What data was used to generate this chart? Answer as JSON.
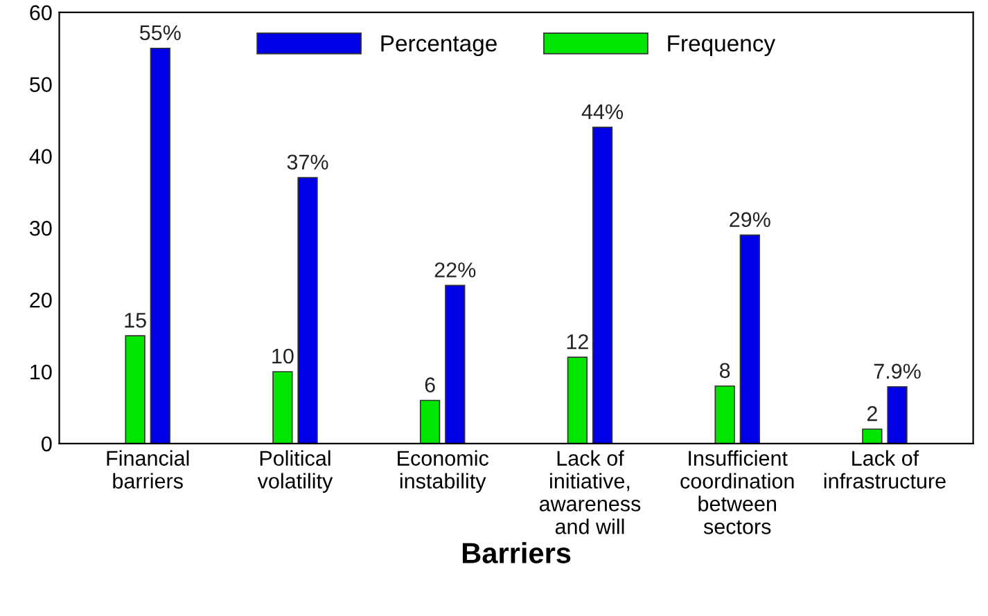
{
  "chart_data": {
    "type": "bar",
    "xlabel": "Barriers",
    "categories": [
      "Financial\nbarriers",
      "Political\nvolatility",
      "Economic\ninstability",
      "Lack of\ninitiative,\nawareness\nand will",
      "Insufficient\ncoordination\nbetween\nsectors",
      "Lack of\ninfrastructure"
    ],
    "series": [
      {
        "name": "Percentage",
        "color": "#0000e6",
        "values": [
          55,
          37,
          22,
          44,
          29,
          7.9
        ],
        "value_labels": [
          "55%",
          "37%",
          "22%",
          "44%",
          "29%",
          "7.9%"
        ]
      },
      {
        "name": "Frequency",
        "color": "#00e600",
        "values": [
          15,
          10,
          6,
          12,
          8,
          2
        ],
        "value_labels": [
          "15",
          "10",
          "6",
          "12",
          "8",
          "2"
        ]
      }
    ],
    "ylim": [
      0,
      60
    ],
    "yticks": [
      0,
      10,
      20,
      30,
      40,
      50,
      60
    ],
    "grid": false,
    "legend": "top"
  }
}
